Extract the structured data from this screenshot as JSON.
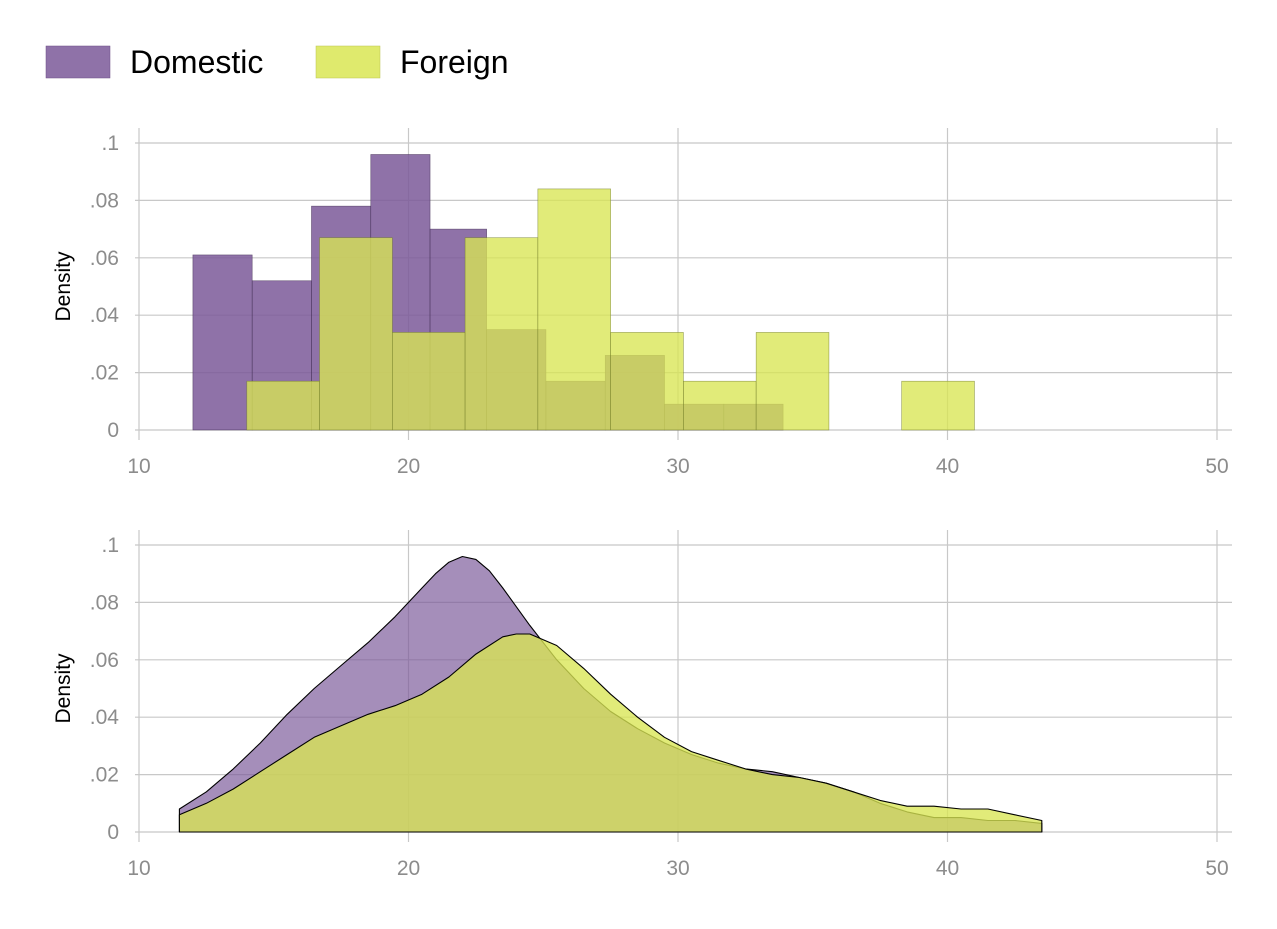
{
  "legend": {
    "items": [
      {
        "label": "Domestic",
        "color": "#7b5999"
      },
      {
        "label": "Foreign",
        "color": "#d9e653"
      }
    ]
  },
  "chart_data": [
    {
      "type": "histogram",
      "ylabel": "Density",
      "xlabel": "",
      "xlim": [
        10,
        50
      ],
      "ylim": [
        0,
        0.1
      ],
      "xticks": [
        10,
        20,
        30,
        40,
        50
      ],
      "xtick_labels": [
        "10",
        "20",
        "30",
        "40",
        "50"
      ],
      "yticks": [
        0,
        0.02,
        0.04,
        0.06,
        0.08,
        0.1
      ],
      "ytick_labels": [
        "0",
        ".02",
        ".04",
        ".06",
        ".08",
        ".1"
      ],
      "grid": true,
      "legend_position": "top-left",
      "series": [
        {
          "name": "Domestic",
          "color": "#7b5999",
          "bins": [
            {
              "x0": 12.0,
              "x1": 14.2,
              "density": 0.061
            },
            {
              "x0": 14.2,
              "x1": 16.4,
              "density": 0.052
            },
            {
              "x0": 16.4,
              "x1": 18.6,
              "density": 0.078
            },
            {
              "x0": 18.6,
              "x1": 20.8,
              "density": 0.096
            },
            {
              "x0": 20.8,
              "x1": 22.9,
              "density": 0.07
            },
            {
              "x0": 22.9,
              "x1": 25.1,
              "density": 0.035
            },
            {
              "x0": 25.1,
              "x1": 27.3,
              "density": 0.017
            },
            {
              "x0": 27.3,
              "x1": 29.5,
              "density": 0.026
            },
            {
              "x0": 29.5,
              "x1": 31.7,
              "density": 0.009
            },
            {
              "x0": 31.7,
              "x1": 33.9,
              "density": 0.009
            }
          ]
        },
        {
          "name": "Foreign",
          "color": "#d9e653",
          "bins": [
            {
              "x0": 14.0,
              "x1": 16.7,
              "density": 0.017
            },
            {
              "x0": 16.7,
              "x1": 19.4,
              "density": 0.067
            },
            {
              "x0": 19.4,
              "x1": 22.1,
              "density": 0.034
            },
            {
              "x0": 22.1,
              "x1": 24.8,
              "density": 0.067
            },
            {
              "x0": 24.8,
              "x1": 27.5,
              "density": 0.084
            },
            {
              "x0": 27.5,
              "x1": 30.2,
              "density": 0.034
            },
            {
              "x0": 30.2,
              "x1": 32.9,
              "density": 0.017
            },
            {
              "x0": 32.9,
              "x1": 35.6,
              "density": 0.034
            },
            {
              "x0": 35.6,
              "x1": 38.3,
              "density": 0
            },
            {
              "x0": 38.3,
              "x1": 41.0,
              "density": 0.017
            }
          ]
        }
      ]
    },
    {
      "type": "area",
      "ylabel": "Density",
      "xlabel": "",
      "xlim": [
        10,
        50
      ],
      "ylim": [
        0,
        0.1
      ],
      "xticks": [
        10,
        20,
        30,
        40,
        50
      ],
      "xtick_labels": [
        "10",
        "20",
        "30",
        "40",
        "50"
      ],
      "yticks": [
        0,
        0.02,
        0.04,
        0.06,
        0.08,
        0.1
      ],
      "ytick_labels": [
        "0",
        ".02",
        ".04",
        ".06",
        ".08",
        ".1"
      ],
      "grid": true,
      "series": [
        {
          "name": "Domestic",
          "color": "#7b5999",
          "x": [
            11.5,
            12.5,
            13.5,
            14.5,
            15.5,
            16.5,
            17.5,
            18.5,
            19.5,
            20.5,
            21.0,
            21.5,
            22.0,
            22.5,
            23.0,
            23.5,
            24.5,
            25.5,
            26.5,
            27.5,
            28.5,
            29.5,
            30.5,
            31.5,
            32.5,
            33.5,
            34.5,
            35.5,
            36.5,
            37.5,
            38.5,
            39.5,
            40.5,
            41.5,
            42.5,
            43.5
          ],
          "y": [
            0.008,
            0.014,
            0.022,
            0.031,
            0.041,
            0.05,
            0.058,
            0.066,
            0.075,
            0.085,
            0.09,
            0.094,
            0.096,
            0.095,
            0.091,
            0.085,
            0.072,
            0.06,
            0.05,
            0.042,
            0.036,
            0.031,
            0.027,
            0.024,
            0.022,
            0.021,
            0.019,
            0.017,
            0.014,
            0.01,
            0.007,
            0.005,
            0.005,
            0.004,
            0.004,
            0.003
          ]
        },
        {
          "name": "Foreign",
          "color": "#d9e653",
          "x": [
            11.5,
            12.5,
            13.5,
            14.5,
            15.5,
            16.5,
            17.5,
            18.5,
            19.5,
            20.5,
            21.5,
            22.5,
            23.5,
            24.0,
            24.5,
            25.5,
            26.5,
            27.5,
            28.5,
            29.5,
            30.5,
            31.5,
            32.5,
            33.5,
            34.5,
            35.5,
            36.5,
            37.5,
            38.5,
            39.5,
            40.5,
            41.5,
            42.5,
            43.5
          ],
          "y": [
            0.006,
            0.01,
            0.015,
            0.021,
            0.027,
            0.033,
            0.037,
            0.041,
            0.044,
            0.048,
            0.054,
            0.062,
            0.068,
            0.069,
            0.069,
            0.065,
            0.057,
            0.048,
            0.04,
            0.033,
            0.028,
            0.025,
            0.022,
            0.02,
            0.019,
            0.017,
            0.014,
            0.011,
            0.009,
            0.009,
            0.008,
            0.008,
            0.006,
            0.004
          ]
        }
      ]
    }
  ]
}
